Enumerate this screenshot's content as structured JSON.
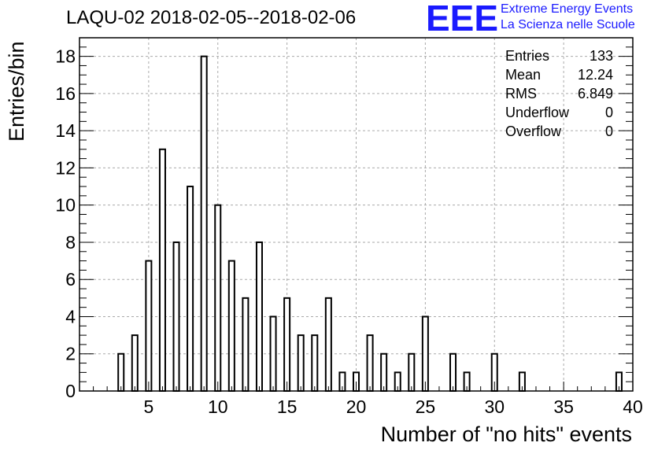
{
  "title": "LAQU-02 2018-02-05--2018-02-06",
  "logo": {
    "mark": "EEE",
    "line1": "Extreme Energy Events",
    "line2": "La Scienza nelle Scuole",
    "color": "#1a1aff"
  },
  "stats": [
    {
      "label": "Entries",
      "value": "133"
    },
    {
      "label": "Mean",
      "value": "12.24"
    },
    {
      "label": "RMS",
      "value": "6.849"
    },
    {
      "label": "Underflow",
      "value": "0"
    },
    {
      "label": "Overflow",
      "value": "0"
    }
  ],
  "chart_data": {
    "type": "bar",
    "title": "LAQU-02 2018-02-05--2018-02-06",
    "xlabel": "Number of \"no hits\" events",
    "ylabel": "Entries/bin",
    "xlim": [
      0,
      40
    ],
    "ylim": [
      0,
      19
    ],
    "xticks": [
      5,
      10,
      15,
      20,
      25,
      30,
      35,
      40
    ],
    "yticks": [
      0,
      2,
      4,
      6,
      8,
      10,
      12,
      14,
      16,
      18
    ],
    "grid": true,
    "x": [
      3,
      4,
      5,
      6,
      7,
      8,
      9,
      10,
      11,
      12,
      13,
      14,
      15,
      16,
      17,
      18,
      19,
      20,
      21,
      22,
      23,
      24,
      25,
      27,
      28,
      30,
      32,
      39
    ],
    "values": [
      2,
      3,
      7,
      13,
      8,
      11,
      18,
      10,
      7,
      5,
      8,
      4,
      5,
      3,
      3,
      5,
      1,
      1,
      3,
      2,
      1,
      2,
      4,
      2,
      1,
      2,
      1,
      1
    ]
  }
}
